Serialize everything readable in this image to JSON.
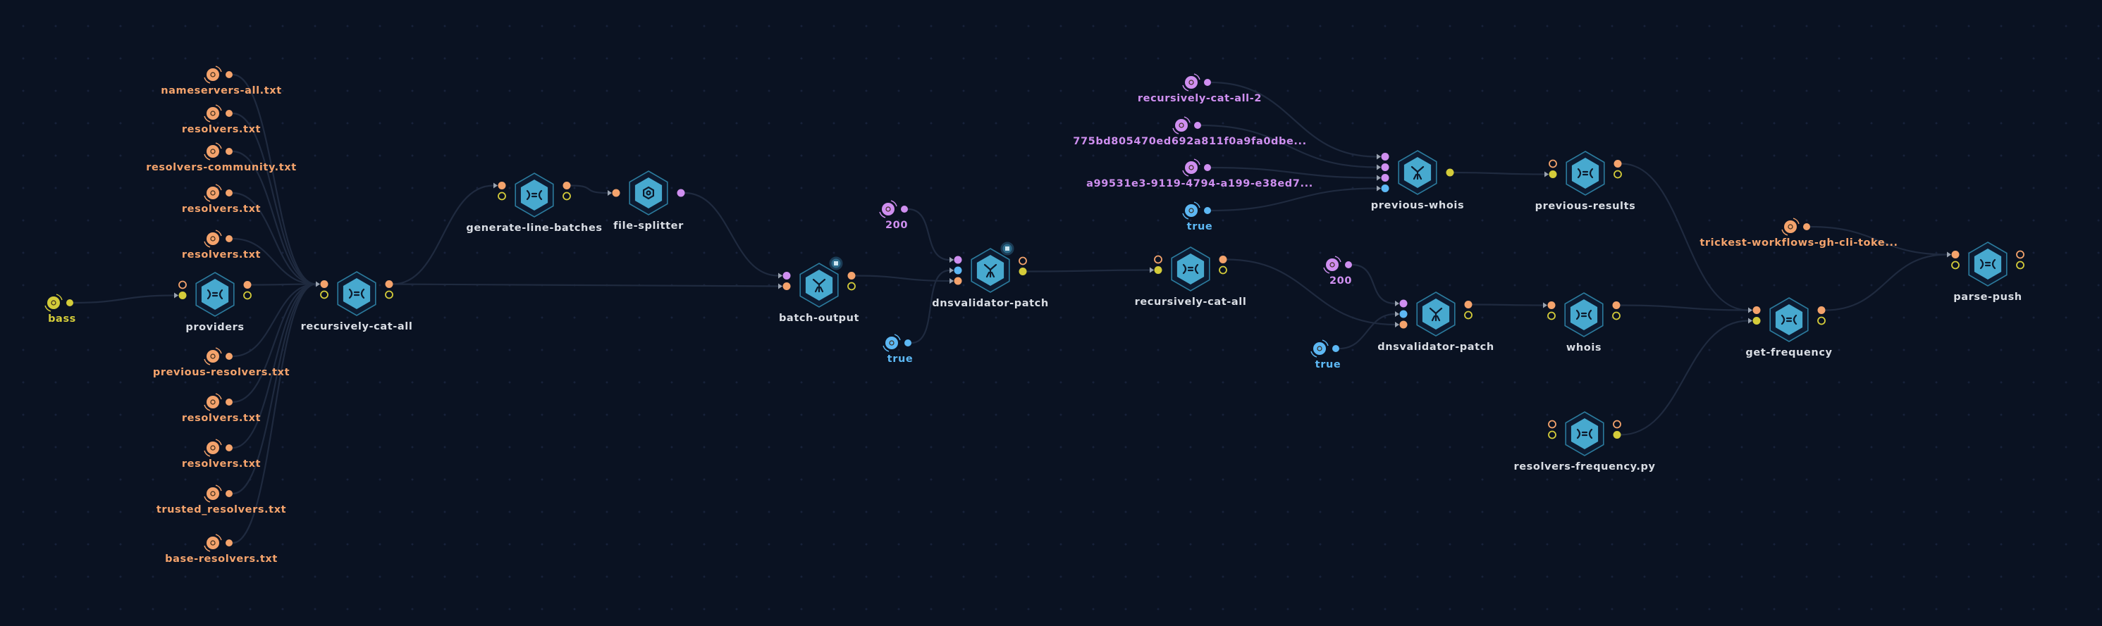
{
  "colors": {
    "file": "#f4a36c",
    "string": "#cf8ff0",
    "boolean": "#5db8f4",
    "folder": "#d4cc3a",
    "node_label": "#d9dde4",
    "hex_fill": "#47a9cf",
    "hex_border": "#2b7a9c",
    "edge": "#1f2a3f",
    "background": "#0a1222"
  },
  "inputs": [
    {
      "id": "in1",
      "label": "nameservers-all.txt",
      "type": "file",
      "icon": "file-icon"
    },
    {
      "id": "in2",
      "label": "resolvers.txt",
      "type": "file",
      "icon": "file-icon"
    },
    {
      "id": "in3",
      "label": "resolvers-community.txt",
      "type": "file",
      "icon": "file-icon"
    },
    {
      "id": "in4",
      "label": "resolvers.txt",
      "type": "file",
      "icon": "file-icon"
    },
    {
      "id": "in5",
      "label": "resolvers.txt",
      "type": "file",
      "icon": "file-icon"
    },
    {
      "id": "in6",
      "label": "previous-resolvers.txt",
      "type": "file",
      "icon": "file-icon"
    },
    {
      "id": "in7",
      "label": "resolvers.txt",
      "type": "file",
      "icon": "file-icon"
    },
    {
      "id": "in8",
      "label": "resolvers.txt",
      "type": "file",
      "icon": "file-icon"
    },
    {
      "id": "in9",
      "label": "trusted_resolvers.txt",
      "type": "file",
      "icon": "file-icon"
    },
    {
      "id": "in10",
      "label": "base-resolvers.txt",
      "type": "file",
      "icon": "file-icon"
    },
    {
      "id": "bass",
      "label": "bass",
      "type": "folder",
      "icon": "folder-icon"
    },
    {
      "id": "p200a",
      "label": "200",
      "type": "string",
      "icon": "string-icon"
    },
    {
      "id": "ptruea",
      "label": "true",
      "type": "boolean",
      "icon": "boolean-icon"
    },
    {
      "id": "prca2",
      "label": "recursively-cat-all-2",
      "type": "string",
      "icon": "string-icon"
    },
    {
      "id": "phash",
      "label": "775bd805470ed692a811f0a9fa0dbe...",
      "type": "string",
      "icon": "string-icon"
    },
    {
      "id": "puuid",
      "label": "a99531e3-9119-4794-a199-e38ed7...",
      "type": "string",
      "icon": "string-icon"
    },
    {
      "id": "ptrueb",
      "label": "true",
      "type": "boolean",
      "icon": "boolean-icon"
    },
    {
      "id": "p200b",
      "label": "200",
      "type": "string",
      "icon": "string-icon"
    },
    {
      "id": "ptruec",
      "label": "true",
      "type": "boolean",
      "icon": "boolean-icon"
    },
    {
      "id": "ptoken",
      "label": "trickest-workflows-gh-cli-toke...",
      "type": "file",
      "icon": "file-icon"
    }
  ],
  "nodes": [
    {
      "id": "providers",
      "label": "providers",
      "icon": "script-icon",
      "in": [
        "file:h",
        "folder:f"
      ],
      "out": [
        "file:f",
        "folder:h"
      ]
    },
    {
      "id": "rca1",
      "label": "recursively-cat-all",
      "icon": "script-icon",
      "in": [
        "file:f",
        "folder:h"
      ],
      "out": [
        "file:f",
        "folder:h"
      ]
    },
    {
      "id": "glb",
      "label": "generate-line-batches",
      "icon": "script-icon",
      "in": [
        "file:f",
        "folder:h"
      ],
      "out": [
        "file:f",
        "folder:h"
      ]
    },
    {
      "id": "fs",
      "label": "file-splitter",
      "icon": "splitter-icon",
      "in": [
        "file:f"
      ],
      "out": [
        "string:f"
      ]
    },
    {
      "id": "bo",
      "label": "batch-output",
      "icon": "tool-icon",
      "badge": true,
      "in": [
        "string:f",
        "file:f"
      ],
      "out": [
        "file:f",
        "folder:h"
      ]
    },
    {
      "id": "dnsv1",
      "label": "dnsvalidator-patch",
      "icon": "tool-icon",
      "badge": true,
      "in": [
        "string:f",
        "boolean:f",
        "file:f"
      ],
      "out": [
        "file:h",
        "folder:f"
      ]
    },
    {
      "id": "rca2",
      "label": "recursively-cat-all",
      "icon": "script-icon",
      "in": [
        "file:h",
        "folder:f"
      ],
      "out": [
        "file:f",
        "folder:h"
      ]
    },
    {
      "id": "dnsv2",
      "label": "dnsvalidator-patch",
      "icon": "tool-icon",
      "in": [
        "string:f",
        "boolean:f",
        "file:f"
      ],
      "out": [
        "file:f",
        "folder:h"
      ]
    },
    {
      "id": "whois",
      "label": "whois",
      "icon": "script-icon",
      "in": [
        "file:f",
        "folder:h"
      ],
      "out": [
        "file:f",
        "folder:h"
      ]
    },
    {
      "id": "pwhois",
      "label": "previous-whois",
      "icon": "tool-icon",
      "in": [
        "string:f",
        "string:f",
        "string:f",
        "boolean:f"
      ],
      "out": [
        "folder:f"
      ]
    },
    {
      "id": "presults",
      "label": "previous-results",
      "icon": "script-icon",
      "in": [
        "file:h",
        "folder:f"
      ],
      "out": [
        "file:f",
        "folder:h"
      ]
    },
    {
      "id": "rfreq",
      "label": "resolvers-frequency.py",
      "icon": "script-icon",
      "in": [
        "file:h",
        "folder:h"
      ],
      "out": [
        "file:h",
        "folder:f"
      ]
    },
    {
      "id": "gfreq",
      "label": "get-frequency",
      "icon": "script-icon",
      "in": [
        "file:f",
        "folder:f"
      ],
      "out": [
        "file:f",
        "folder:h"
      ]
    },
    {
      "id": "pp",
      "label": "parse-push",
      "icon": "script-icon",
      "in": [
        "file:f",
        "folder:h"
      ],
      "out": [
        "file:h",
        "folder:h"
      ]
    }
  ],
  "edges": [
    [
      "in1",
      0,
      "rca1",
      0
    ],
    [
      "in2",
      0,
      "rca1",
      0
    ],
    [
      "in3",
      0,
      "rca1",
      0
    ],
    [
      "in4",
      0,
      "rca1",
      0
    ],
    [
      "in5",
      0,
      "rca1",
      0
    ],
    [
      "in6",
      0,
      "rca1",
      0
    ],
    [
      "in7",
      0,
      "rca1",
      0
    ],
    [
      "in8",
      0,
      "rca1",
      0
    ],
    [
      "in9",
      0,
      "rca1",
      0
    ],
    [
      "in10",
      0,
      "rca1",
      0
    ],
    [
      "bass",
      0,
      "providers",
      1
    ],
    [
      "providers",
      0,
      "rca1",
      0
    ],
    [
      "rca1",
      0,
      "glb",
      0
    ],
    [
      "rca1",
      0,
      "bo",
      1
    ],
    [
      "glb",
      0,
      "fs",
      0
    ],
    [
      "fs",
      0,
      "bo",
      0
    ],
    [
      "bo",
      0,
      "dnsv1",
      2
    ],
    [
      "p200a",
      0,
      "dnsv1",
      0
    ],
    [
      "ptruea",
      0,
      "dnsv1",
      1
    ],
    [
      "dnsv1",
      1,
      "rca2",
      1
    ],
    [
      "rca2",
      0,
      "dnsv2",
      2
    ],
    [
      "p200b",
      0,
      "dnsv2",
      0
    ],
    [
      "ptruec",
      0,
      "dnsv2",
      1
    ],
    [
      "dnsv2",
      0,
      "whois",
      0
    ],
    [
      "whois",
      0,
      "gfreq",
      0
    ],
    [
      "presults",
      0,
      "gfreq",
      0
    ],
    [
      "rfreq",
      1,
      "gfreq",
      1
    ],
    [
      "gfreq",
      0,
      "pp",
      0
    ],
    [
      "ptoken",
      0,
      "pp",
      0
    ],
    [
      "prca2",
      0,
      "pwhois",
      0
    ],
    [
      "phash",
      0,
      "pwhois",
      1
    ],
    [
      "puuid",
      0,
      "pwhois",
      2
    ],
    [
      "ptrueb",
      0,
      "pwhois",
      3
    ],
    [
      "pwhois",
      0,
      "presults",
      1
    ]
  ]
}
